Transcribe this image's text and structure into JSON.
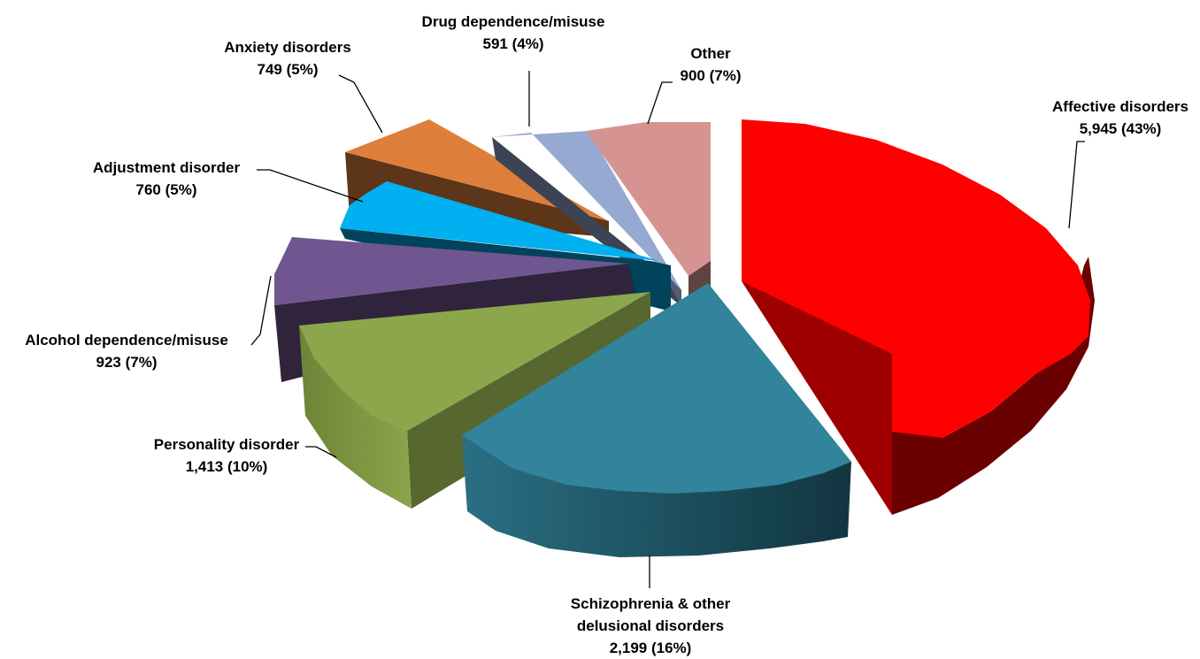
{
  "chart_data": {
    "type": "pie",
    "style": "3d-exploded",
    "title": "",
    "slices": [
      {
        "name": "Affective disorders",
        "value": 5945,
        "pct": "43%",
        "value_label": "5,945 (43%)",
        "color": "#ff0000"
      },
      {
        "name": "Schizophrenia & other delusional disorders",
        "name_lines": [
          "Schizophrenia & other",
          "delusional disorders"
        ],
        "value": 2199,
        "pct": "16%",
        "value_label": "2,199 (16%)",
        "color": "#31849b"
      },
      {
        "name": "Personality disorder",
        "value": 1413,
        "pct": "10%",
        "value_label": "1,413 (10%)",
        "color": "#8ca64c"
      },
      {
        "name": "Alcohol dependence/misuse",
        "value": 923,
        "pct": "7%",
        "value_label": "923 (7%)",
        "color": "#6f5690"
      },
      {
        "name": "Adjustment disorder",
        "value": 760,
        "pct": "5%",
        "value_label": "760 (5%)",
        "color": "#00b0f0"
      },
      {
        "name": "Anxiety disorders",
        "value": 749,
        "pct": "5%",
        "value_label": "749 (5%)",
        "color": "#dd7f3a"
      },
      {
        "name": "Drug dependence/misuse",
        "value": 591,
        "pct": "4%",
        "value_label": "591 (4%)",
        "color": "#95a9d1"
      },
      {
        "name": "Other",
        "value": 900,
        "pct": "7%",
        "value_label": "900 (7%)",
        "color": "#d59491"
      }
    ]
  }
}
